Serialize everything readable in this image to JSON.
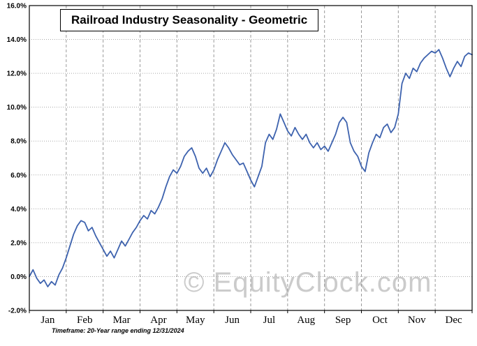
{
  "title": "Railroad Industry Seasonality - Geometric",
  "footnote": "Timeframe: 20-Year range ending 12/31/2024",
  "watermark": "© EquityClock.com",
  "colors": {
    "line": "#3d62ae",
    "h_grid": "#a8a8a8",
    "v_grid": "#9a9a9a",
    "axis": "#000000",
    "watermark": "#cbcbcb"
  },
  "chart_data": {
    "type": "line",
    "title": "Railroad Industry Seasonality - Geometric",
    "xlabel": "",
    "ylabel": "",
    "grid": true,
    "legend": "none",
    "x_range_note": "values evenly spaced from Jan 1 (x=0) to Dec 31 (x=12)",
    "ylim": [
      -2.0,
      16.0
    ],
    "y_ticks": [
      "16.0%",
      "14.0%",
      "12.0%",
      "10.0%",
      "8.0%",
      "6.0%",
      "4.0%",
      "2.0%",
      "0.0%",
      "-2.0%"
    ],
    "y_tick_values": [
      16,
      14,
      12,
      10,
      8,
      6,
      4,
      2,
      0,
      -2
    ],
    "months": [
      "Jan",
      "Feb",
      "Mar",
      "Apr",
      "May",
      "Jun",
      "Jul",
      "Aug",
      "Sep",
      "Oct",
      "Nov",
      "Dec"
    ],
    "series": [
      {
        "name": "Railroad Industry Seasonality (%, geometric avg, 20-yr)",
        "values": [
          0.0,
          0.4,
          -0.1,
          -0.4,
          -0.2,
          -0.6,
          -0.3,
          -0.5,
          0.1,
          0.5,
          1.1,
          1.8,
          2.5,
          3.0,
          3.3,
          3.2,
          2.7,
          2.9,
          2.4,
          2.0,
          1.6,
          1.2,
          1.5,
          1.1,
          1.6,
          2.1,
          1.8,
          2.2,
          2.6,
          2.9,
          3.3,
          3.6,
          3.4,
          3.9,
          3.7,
          4.1,
          4.6,
          5.3,
          5.9,
          6.3,
          6.1,
          6.5,
          7.1,
          7.4,
          7.6,
          7.1,
          6.4,
          6.1,
          6.4,
          5.9,
          6.3,
          6.9,
          7.4,
          7.9,
          7.6,
          7.2,
          6.9,
          6.6,
          6.7,
          6.2,
          5.7,
          5.3,
          5.9,
          6.5,
          7.9,
          8.4,
          8.1,
          8.7,
          9.6,
          9.1,
          8.6,
          8.3,
          8.8,
          8.4,
          8.1,
          8.4,
          7.9,
          7.6,
          7.9,
          7.5,
          7.7,
          7.4,
          7.9,
          8.4,
          9.1,
          9.4,
          9.1,
          7.9,
          7.4,
          7.1,
          6.5,
          6.2,
          7.3,
          7.9,
          8.4,
          8.2,
          8.8,
          9.0,
          8.5,
          8.8,
          9.6,
          11.4,
          12.0,
          11.7,
          12.3,
          12.1,
          12.6,
          12.9,
          13.1,
          13.3,
          13.2,
          13.4,
          12.9,
          12.3,
          11.8,
          12.3,
          12.7,
          12.4,
          13.0,
          13.2,
          13.1
        ]
      }
    ]
  }
}
